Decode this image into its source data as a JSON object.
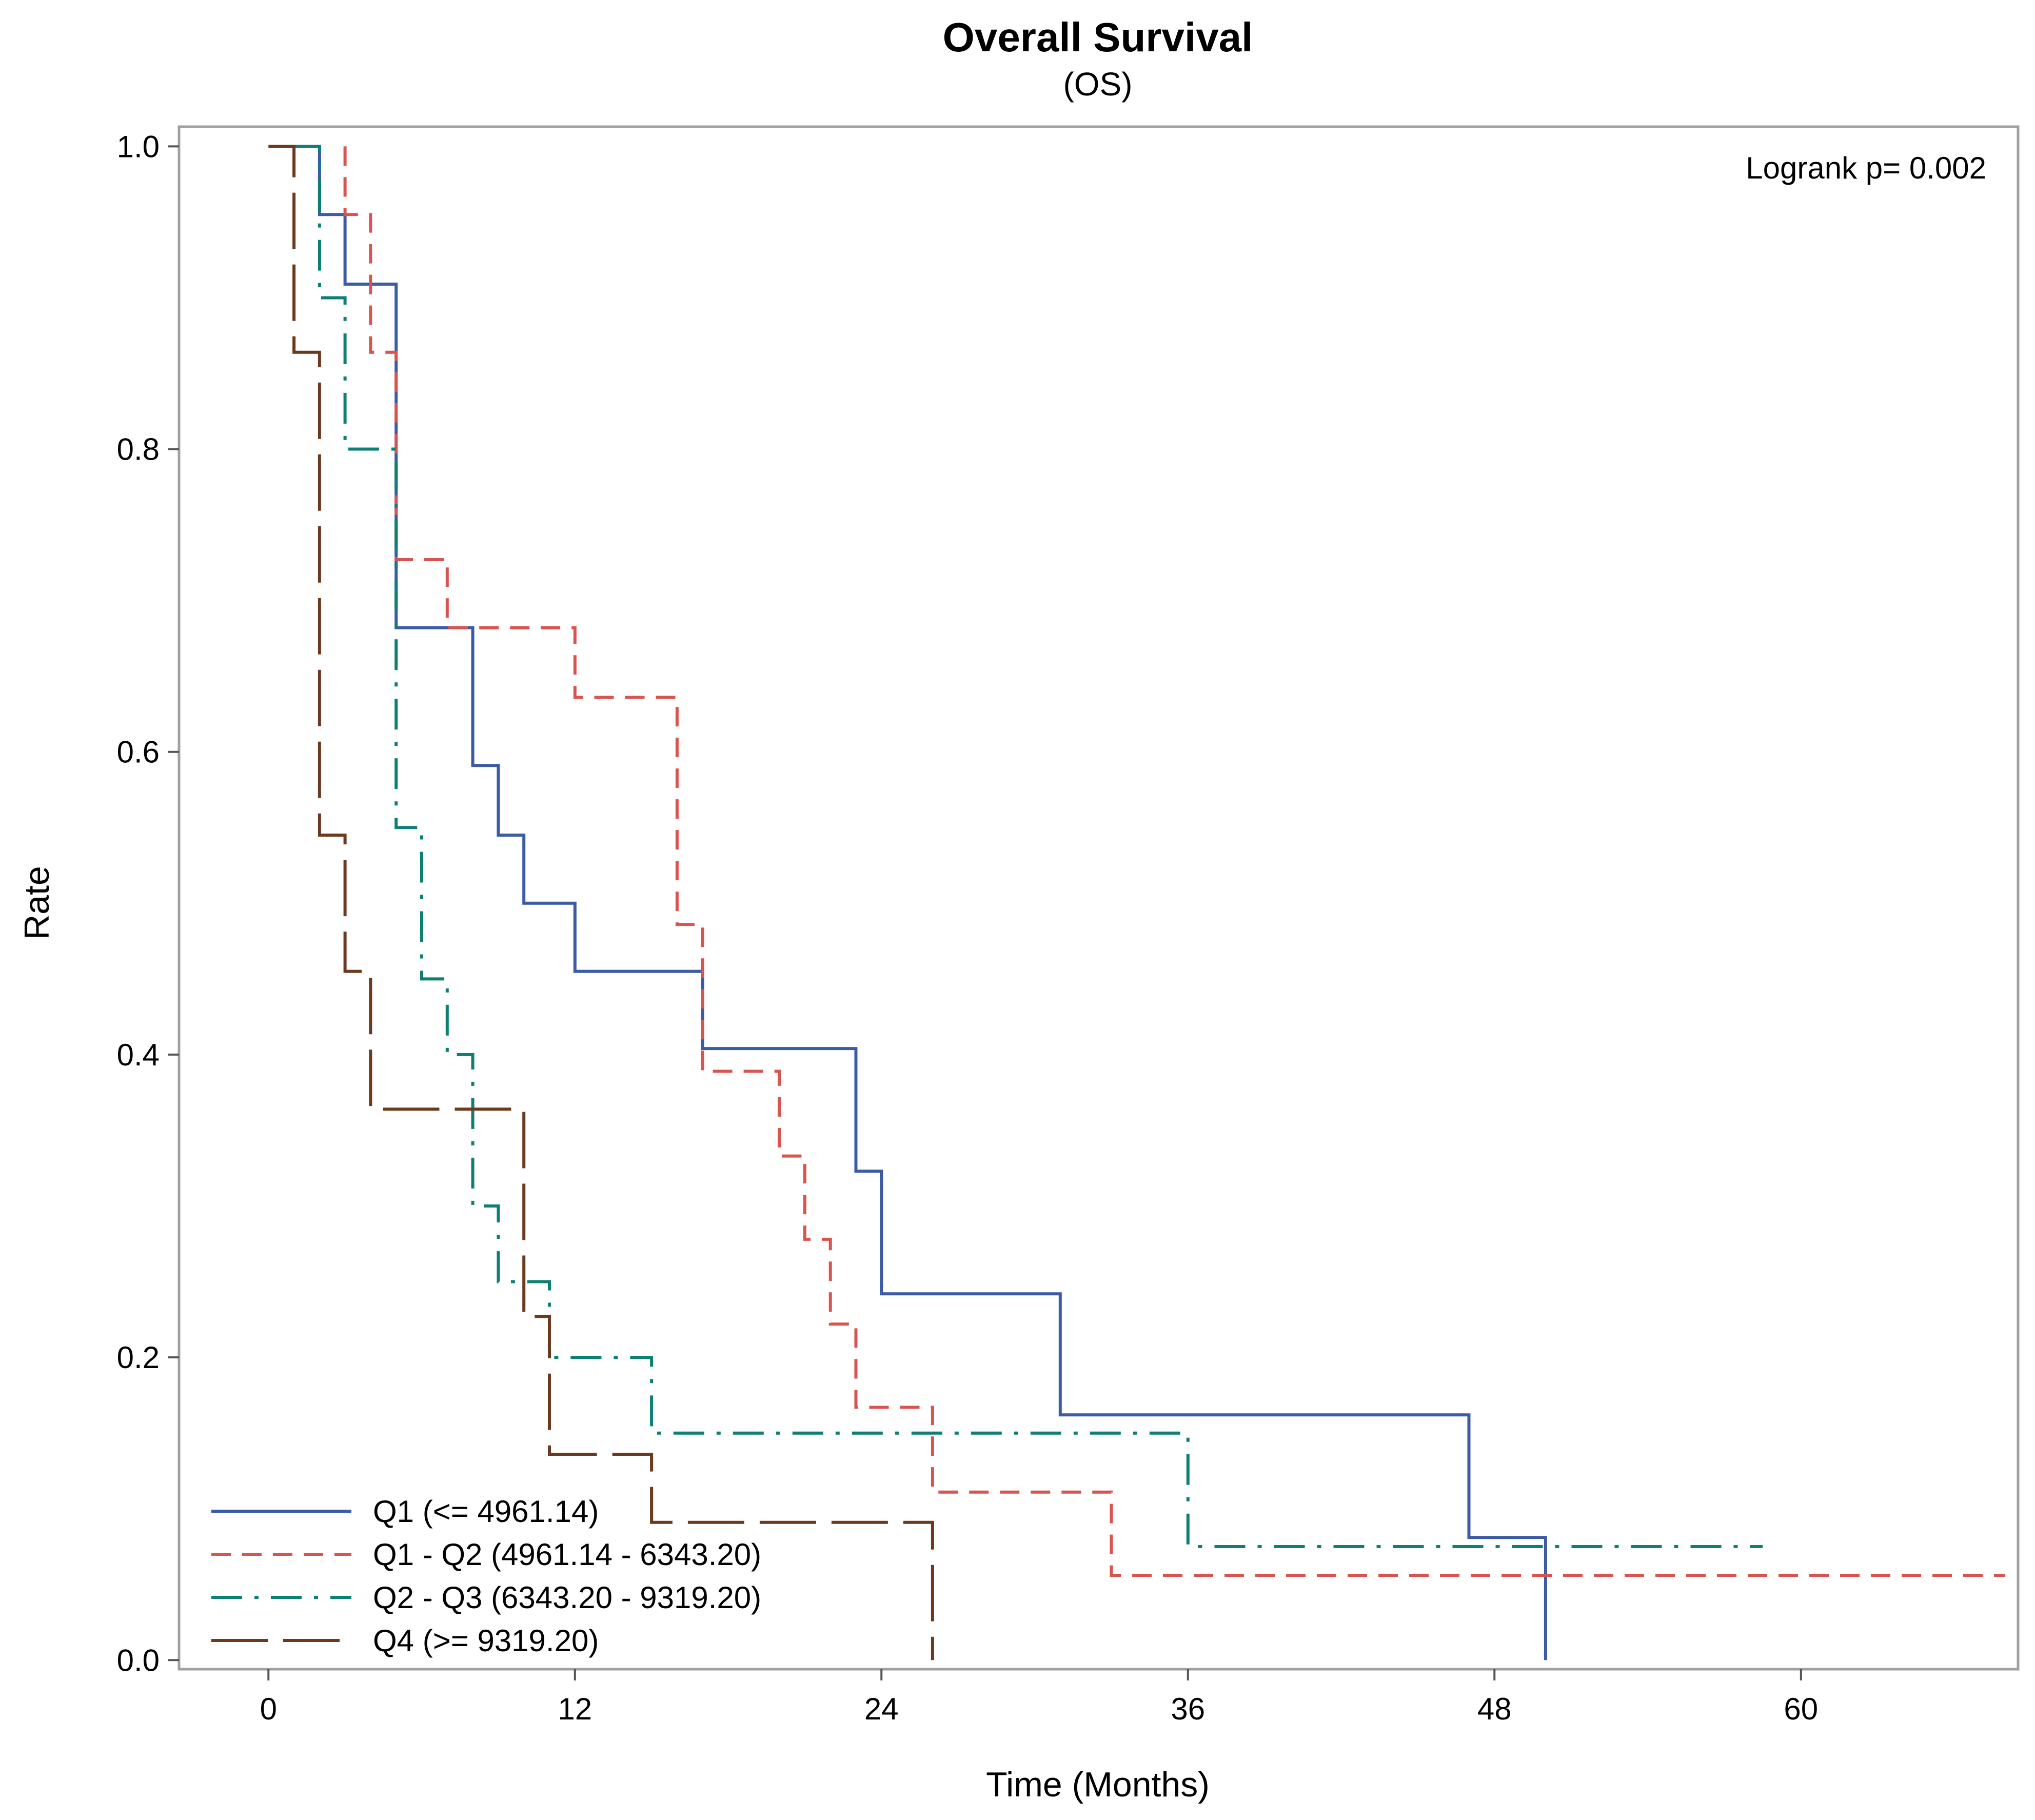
{
  "chart_data": {
    "type": "line",
    "subtype": "kaplan-meier step",
    "title": "Overall Survival",
    "subtitle": "(OS)",
    "xlabel": "Time (Months)",
    "ylabel": "Rate",
    "xlim": [
      -3.5,
      68.5
    ],
    "ylim": [
      -0.006,
      1.013
    ],
    "xticks": [
      0,
      12,
      24,
      36,
      48,
      60
    ],
    "yticks": [
      0.0,
      0.2,
      0.4,
      0.6,
      0.8,
      1.0
    ],
    "xtick_labels": [
      "0",
      "12",
      "24",
      "36",
      "48",
      "60"
    ],
    "ytick_labels": [
      "0.0",
      "0.2",
      "0.4",
      "0.6",
      "0.8",
      "1.0"
    ],
    "annotation": "Logrank p= 0.002",
    "legend_position": "bottom-left",
    "grid": false,
    "series": [
      {
        "name": "Q1 (<= 4961.14)",
        "color": "#3b5ba5",
        "dash": "solid",
        "x": [
          2,
          2,
          3,
          3,
          5,
          5,
          8,
          8,
          9,
          9,
          10,
          10,
          12,
          12,
          17,
          17,
          23,
          23,
          24,
          24,
          31,
          31,
          47,
          47,
          50,
          50
        ],
        "y": [
          1.0,
          0.955,
          0.955,
          0.909,
          0.909,
          0.682,
          0.682,
          0.591,
          0.591,
          0.545,
          0.545,
          0.5,
          0.5,
          0.455,
          0.455,
          0.404,
          0.404,
          0.323,
          0.323,
          0.242,
          0.242,
          0.162,
          0.162,
          0.081,
          0.081,
          0.0
        ]
      },
      {
        "name": "Q1 - Q2 (4961.14 - 6343.20)",
        "color": "#d9534f",
        "dash": "dashed",
        "x": [
          3,
          3,
          4,
          4,
          5,
          5,
          7,
          7,
          12,
          12,
          16,
          16,
          17,
          17,
          20,
          20,
          21,
          21,
          22,
          22,
          23,
          23,
          26,
          26,
          33,
          33,
          68
        ],
        "y": [
          1.0,
          0.955,
          0.955,
          0.864,
          0.864,
          0.727,
          0.727,
          0.682,
          0.682,
          0.636,
          0.636,
          0.486,
          0.486,
          0.389,
          0.389,
          0.333,
          0.333,
          0.278,
          0.278,
          0.222,
          0.222,
          0.167,
          0.167,
          0.111,
          0.111,
          0.056,
          0.056
        ]
      },
      {
        "name": "Q2 - Q3 (6343.20 - 9319.20)",
        "color": "#0d7f73",
        "dash": "dashdot",
        "x": [
          1,
          1,
          2,
          2,
          3,
          3,
          5,
          5,
          6,
          6,
          7,
          7,
          8,
          8,
          9,
          9,
          11,
          11,
          15,
          15,
          36,
          36,
          58.5
        ],
        "y": [
          1.0,
          1.0,
          1.0,
          0.9,
          0.9,
          0.8,
          0.8,
          0.55,
          0.55,
          0.45,
          0.45,
          0.4,
          0.4,
          0.3,
          0.3,
          0.25,
          0.25,
          0.2,
          0.2,
          0.15,
          0.15,
          0.075,
          0.075
        ]
      },
      {
        "name": "Q4 (>= 9319.20)",
        "color": "#6b3a1e",
        "dash": "longdash",
        "x": [
          0,
          1,
          1,
          2,
          2,
          3,
          3,
          4,
          4,
          10,
          10,
          11,
          11,
          15,
          15,
          26,
          26
        ],
        "y": [
          1.0,
          1.0,
          0.864,
          0.864,
          0.545,
          0.545,
          0.455,
          0.455,
          0.364,
          0.364,
          0.227,
          0.227,
          0.136,
          0.136,
          0.091,
          0.091,
          0.0
        ]
      }
    ]
  }
}
